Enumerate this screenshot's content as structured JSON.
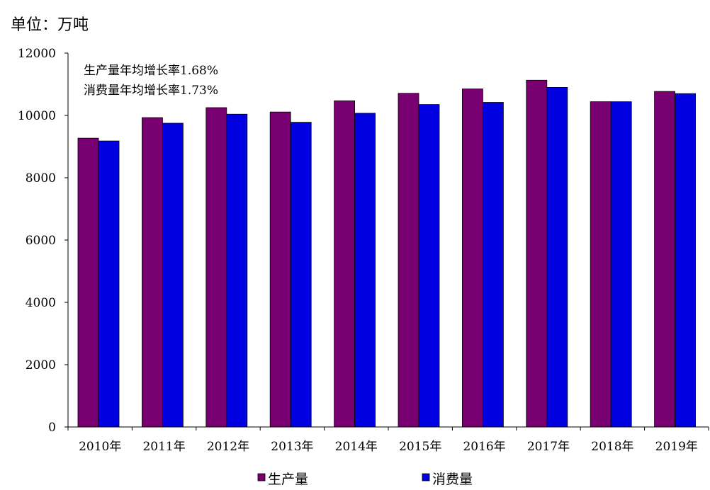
{
  "chart_data": {
    "type": "bar",
    "unit_label": "单位：万吨",
    "categories": [
      "2010年",
      "2011年",
      "2012年",
      "2013年",
      "2014年",
      "2015年",
      "2016年",
      "2017年",
      "2018年",
      "2019年"
    ],
    "series": [
      {
        "name": "生产量",
        "color": "#780070",
        "values": [
          9270,
          9930,
          10250,
          10110,
          10470,
          10710,
          10850,
          11130,
          10440,
          10770
        ]
      },
      {
        "name": "消费量",
        "color": "#0000E0",
        "values": [
          9180,
          9750,
          10040,
          9780,
          10070,
          10350,
          10420,
          10900,
          10440,
          10700
        ]
      }
    ],
    "annotations": [
      "生产量年均增长率1.68%",
      "消费量年均增长率1.73%"
    ],
    "ylim": [
      0,
      12000
    ],
    "yticks": [
      "0",
      "2000",
      "4000",
      "6000",
      "8000",
      "10000",
      "12000"
    ],
    "grid": false,
    "legend_position": "bottom"
  }
}
